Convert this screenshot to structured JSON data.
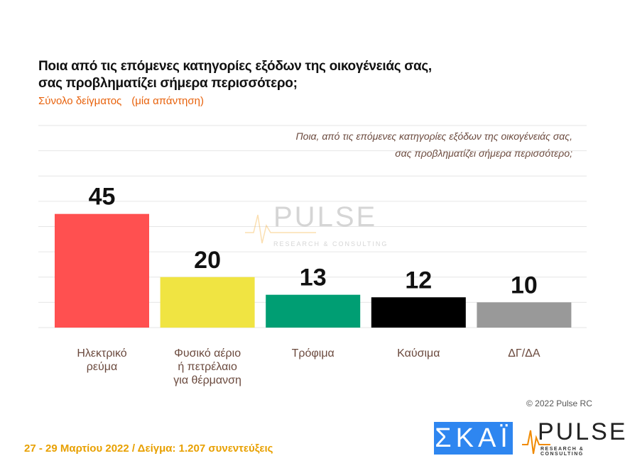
{
  "header": {
    "title_line1": "Ποια από τις επόμενες κατηγορίες εξόδων της οικογένειάς σας,",
    "title_line2": "σας προβληματίζει σήμερα περισσότερο;",
    "sample": "Σύνολο δείγματος",
    "answer_type": "(μία απάντηση)"
  },
  "chart_data": {
    "type": "bar",
    "title": "Ποια, από τις επόμενες κατηγορίες εξόδων της οικογένειάς σας, σας προβληματίζει σήμερα περισσότερο;",
    "title_line1": "Ποια, από τις επόμενες κατηγορίες εξόδων της οικογένειάς σας,",
    "title_line2": "σας προβληματίζει σήμερα περισσότερο;",
    "categories": [
      [
        "Ηλεκτρικό",
        "ρεύμα"
      ],
      [
        "Φυσικό αέριο",
        "ή πετρέλαιο",
        "για θέρμανση"
      ],
      [
        "Τρόφιμα"
      ],
      [
        "Καύσιμα"
      ],
      [
        "ΔΓ/ΔΑ"
      ]
    ],
    "values": [
      45,
      20,
      13,
      12,
      10
    ],
    "colors": [
      "#ff5050",
      "#f0e442",
      "#009e73",
      "#000000",
      "#999999"
    ],
    "ylim": [
      0,
      80
    ],
    "grid": true
  },
  "watermark": {
    "brand": "PULSE",
    "tagline": "RESEARCH & CONSULTING"
  },
  "footer": {
    "dates": "27 - 29  Μαρτίου  2022  /  Δείγμα:  1.207 συνεντεύξεις",
    "copyright": "© 2022 Pulse RC"
  },
  "logos": {
    "skai": "ΣΚΑΪ",
    "pulse": "PULSE",
    "pulse_tagline": "RESEARCH & CONSULTING"
  }
}
